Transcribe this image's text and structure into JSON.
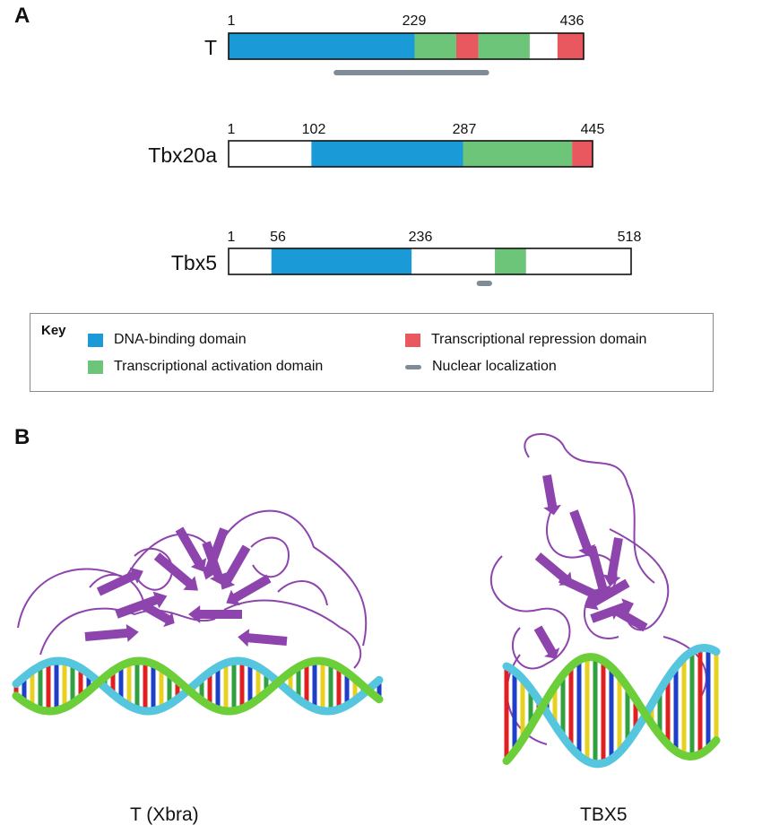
{
  "panel_a": {
    "letter": "A",
    "proteins": [
      {
        "name": "T",
        "length": 436,
        "labels": [
          "1",
          "229",
          "436"
        ],
        "segments": [
          {
            "type": "dna",
            "start": 1,
            "end": 229
          },
          {
            "type": "act",
            "start": 229,
            "end": 280
          },
          {
            "type": "rep",
            "start": 280,
            "end": 307
          },
          {
            "type": "act",
            "start": 307,
            "end": 370
          },
          {
            "type": "rep",
            "start": 404,
            "end": 436
          }
        ],
        "nls": {
          "start": 133,
          "end": 317
        }
      },
      {
        "name": "Tbx20a",
        "length": 445,
        "labels": [
          "1",
          "102",
          "287",
          "445"
        ],
        "segments": [
          {
            "type": "dna",
            "start": 102,
            "end": 287
          },
          {
            "type": "act",
            "start": 287,
            "end": 420
          },
          {
            "type": "rep",
            "start": 420,
            "end": 445
          }
        ]
      },
      {
        "name": "Tbx5",
        "length": 518,
        "labels": [
          "1",
          "56",
          "236",
          "518"
        ],
        "segments": [
          {
            "type": "dna",
            "start": 56,
            "end": 236
          },
          {
            "type": "act",
            "start": 343,
            "end": 383
          }
        ],
        "nls": {
          "start": 323,
          "end": 336
        }
      }
    ]
  },
  "key": {
    "title": "Key",
    "items": [
      {
        "id": "dna",
        "label": "DNA-binding domain"
      },
      {
        "id": "act",
        "label": "Transcriptional activation domain"
      },
      {
        "id": "rep",
        "label": "Transcriptional repression domain"
      },
      {
        "id": "nls",
        "label": "Nuclear localization"
      }
    ]
  },
  "colors": {
    "dna": "#1a9ad6",
    "act": "#6dc57a",
    "rep": "#e8585e",
    "nls": "#7f8c97",
    "protein": "#8e44ad",
    "dna_backbone_1": "#6ccf3a",
    "dna_backbone_2": "#55c6dd"
  },
  "panel_b": {
    "letter": "B",
    "structures": [
      {
        "label": "T (Xbra)"
      },
      {
        "label": "TBX5"
      }
    ]
  }
}
